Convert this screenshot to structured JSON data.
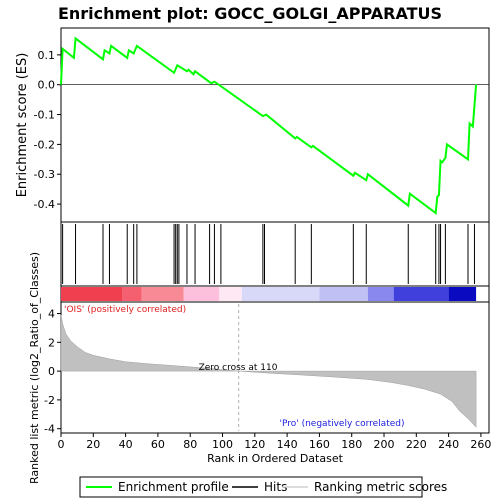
{
  "chart_data": {
    "type": "line",
    "title": "Enrichment plot: GOCC_GOLGI_APPARATUS",
    "xlabel": "Rank in Ordered Dataset",
    "es_panel": {
      "ylabel": "Enrichment score (ES)",
      "ylim": [
        -0.46,
        0.19
      ],
      "yticks": [
        -0.4,
        -0.3,
        -0.2,
        -0.1,
        0.0,
        0.1
      ],
      "ytick_labels": [
        "-0.4",
        "-0.3",
        "-0.2",
        "-0.1",
        "0.0",
        "0.1"
      ],
      "series": [
        {
          "name": "Enrichment profile",
          "color": "#00ff00",
          "points": [
            [
              0,
              0.0
            ],
            [
              1,
              0.12
            ],
            [
              8,
              0.09
            ],
            [
              9,
              0.155
            ],
            [
              26,
              0.085
            ],
            [
              27,
              0.115
            ],
            [
              30,
              0.105
            ],
            [
              31,
              0.13
            ],
            [
              41,
              0.09
            ],
            [
              42,
              0.115
            ],
            [
              45,
              0.105
            ],
            [
              47,
              0.13
            ],
            [
              70,
              0.04
            ],
            [
              72,
              0.065
            ],
            [
              78,
              0.045
            ],
            [
              79,
              0.05
            ],
            [
              82,
              0.035
            ],
            [
              83,
              0.045
            ],
            [
              93,
              0.005
            ],
            [
              95,
              0.01
            ],
            [
              99,
              -0.005
            ],
            [
              125,
              -0.105
            ],
            [
              127,
              -0.1
            ],
            [
              145,
              -0.18
            ],
            [
              146,
              -0.175
            ],
            [
              155,
              -0.21
            ],
            [
              156,
              -0.205
            ],
            [
              181,
              -0.305
            ],
            [
              182,
              -0.295
            ],
            [
              189,
              -0.32
            ],
            [
              190,
              -0.3
            ],
            [
              215,
              -0.405
            ],
            [
              216,
              -0.365
            ],
            [
              232,
              -0.43
            ],
            [
              233,
              -0.375
            ],
            [
              234,
              -0.37
            ],
            [
              235,
              -0.255
            ],
            [
              236,
              -0.26
            ],
            [
              238,
              -0.245
            ],
            [
              239,
              -0.2
            ],
            [
              252,
              -0.25
            ],
            [
              253,
              -0.13
            ],
            [
              255,
              -0.14
            ],
            [
              257,
              0.0
            ]
          ]
        }
      ]
    },
    "hits": [
      1,
      9,
      26,
      30,
      41,
      45,
      47,
      70,
      71,
      72,
      73,
      78,
      83,
      92,
      95,
      99,
      125,
      126,
      145,
      155,
      181,
      189,
      215,
      232,
      234,
      235,
      238,
      252,
      256
    ],
    "ranking_bar": {
      "segments": [
        {
          "from": 0,
          "to": 38,
          "color": "#f04050"
        },
        {
          "from": 38,
          "to": 50,
          "color": "#f46070"
        },
        {
          "from": 50,
          "to": 76,
          "color": "#f88a95"
        },
        {
          "from": 76,
          "to": 98,
          "color": "#fcc0dc"
        },
        {
          "from": 98,
          "to": 112,
          "color": "#fde8f4"
        },
        {
          "from": 112,
          "to": 160,
          "color": "#d8d8f8"
        },
        {
          "from": 160,
          "to": 190,
          "color": "#c0c0f4"
        },
        {
          "from": 190,
          "to": 206,
          "color": "#8888ee"
        },
        {
          "from": 206,
          "to": 240,
          "color": "#4040dd"
        },
        {
          "from": 240,
          "to": 257,
          "color": "#0a0ac0"
        }
      ]
    },
    "metric_panel": {
      "ylabel": "Ranked list metric (log2_Ratio_of_Classes)",
      "ylim": [
        -4.3,
        4.8
      ],
      "yticks": [
        -4,
        -2,
        0,
        2,
        4
      ],
      "ytick_labels": [
        "-4",
        "-2",
        "0",
        "2",
        "4"
      ],
      "values": [
        [
          0,
          3.9
        ],
        [
          1,
          3.3
        ],
        [
          3,
          2.6
        ],
        [
          6,
          2.1
        ],
        [
          10,
          1.7
        ],
        [
          15,
          1.3
        ],
        [
          20,
          1.1
        ],
        [
          30,
          0.85
        ],
        [
          40,
          0.65
        ],
        [
          55,
          0.5
        ],
        [
          70,
          0.38
        ],
        [
          85,
          0.25
        ],
        [
          100,
          0.1
        ],
        [
          110,
          0.0
        ],
        [
          130,
          -0.15
        ],
        [
          150,
          -0.28
        ],
        [
          170,
          -0.42
        ],
        [
          190,
          -0.58
        ],
        [
          205,
          -0.8
        ],
        [
          215,
          -1.0
        ],
        [
          225,
          -1.25
        ],
        [
          235,
          -1.6
        ],
        [
          242,
          -2.1
        ],
        [
          247,
          -2.8
        ],
        [
          252,
          -3.3
        ],
        [
          257,
          -3.9
        ]
      ],
      "zero_cross_label": "Zero cross at 110",
      "zero_cross": 110,
      "pos_label": "'OIS' (positively correlated)",
      "neg_label": "'Pro' (negatively correlated)"
    },
    "xlim": [
      0,
      265
    ],
    "xticks": [
      0,
      20,
      40,
      60,
      80,
      100,
      120,
      140,
      160,
      180,
      200,
      220,
      240,
      260
    ],
    "xtick_labels": [
      "0",
      "20",
      "40",
      "60",
      "80",
      "100",
      "120",
      "140",
      "160",
      "180",
      "200",
      "220",
      "240",
      "260"
    ],
    "legend": {
      "placement": "bottom",
      "entries": [
        {
          "label": "Enrichment profile",
          "color": "#00ff00",
          "kind": "line"
        },
        {
          "label": "Hits",
          "color": "#000000",
          "kind": "line"
        },
        {
          "label": "Ranking metric scores",
          "color": "#d0d0d0",
          "kind": "line"
        }
      ]
    }
  }
}
